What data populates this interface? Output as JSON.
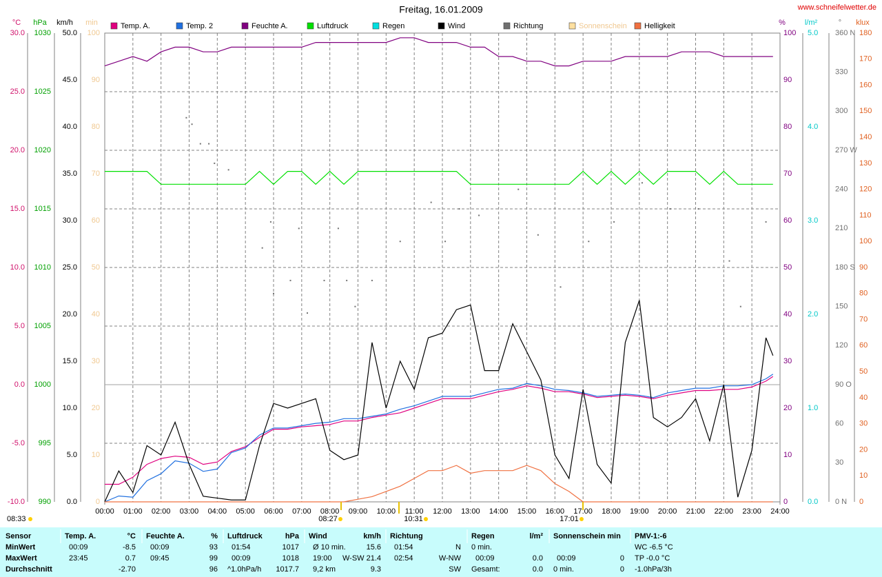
{
  "title": "Freitag, 16.01.2009",
  "site": "www.schneifelwetter.de",
  "chart_data": {
    "type": "line",
    "xlim": [
      0,
      24
    ],
    "xticks": [
      {
        "value": 0,
        "label": "00:00"
      },
      {
        "value": 1,
        "label": "01:00"
      },
      {
        "value": 2,
        "label": "02:00"
      },
      {
        "value": 3,
        "label": "03:00"
      },
      {
        "value": 4,
        "label": "04:00"
      },
      {
        "value": 5,
        "label": "05:00"
      },
      {
        "value": 6,
        "label": "06:00"
      },
      {
        "value": 7,
        "label": "07:00"
      },
      {
        "value": 8,
        "label": "08:00"
      },
      {
        "value": 9,
        "label": "09:00"
      },
      {
        "value": 10,
        "label": "10:00"
      },
      {
        "value": 11,
        "label": "11:00"
      },
      {
        "value": 12,
        "label": "12:00"
      },
      {
        "value": 13,
        "label": "13:00"
      },
      {
        "value": 14,
        "label": "14:00"
      },
      {
        "value": 15,
        "label": "15:00"
      },
      {
        "value": 16,
        "label": "16:00"
      },
      {
        "value": 17,
        "label": "17:00"
      },
      {
        "value": 18,
        "label": "18:00"
      },
      {
        "value": 19,
        "label": "19:00"
      },
      {
        "value": 20,
        "label": "20:00"
      },
      {
        "value": 21,
        "label": "21:00"
      },
      {
        "value": 22,
        "label": "22:00"
      },
      {
        "value": 23,
        "label": "23:00"
      },
      {
        "value": 24,
        "label": "24:00"
      }
    ],
    "grid": true,
    "x": [
      0,
      0.5,
      1,
      1.5,
      2,
      2.5,
      3,
      3.5,
      4,
      4.5,
      5,
      5.5,
      6,
      6.5,
      7,
      7.5,
      8,
      8.5,
      9,
      9.5,
      10,
      10.5,
      11,
      11.5,
      12,
      12.5,
      13,
      13.5,
      14,
      14.5,
      15,
      15.5,
      16,
      16.5,
      17,
      17.5,
      18,
      18.5,
      19,
      19.5,
      20,
      20.5,
      21,
      21.5,
      22,
      22.5,
      23,
      23.5,
      23.75
    ],
    "axes": {
      "temp": {
        "label": "°C",
        "color": "#d0106a",
        "lim": [
          -10,
          30
        ],
        "ticks": [
          {
            "value": 30,
            "label": "30.0"
          },
          {
            "value": 25,
            "label": "25.0"
          },
          {
            "value": 20,
            "label": "20.0"
          },
          {
            "value": 15,
            "label": "15.0"
          },
          {
            "value": 10,
            "label": "10.0"
          },
          {
            "value": 5,
            "label": "5.0"
          },
          {
            "value": 0,
            "label": "0.0"
          },
          {
            "value": -5,
            "label": "-5.0"
          },
          {
            "value": -10,
            "label": "-10.0"
          }
        ]
      },
      "pressure": {
        "label": "hPa",
        "color": "#00a000",
        "lim": [
          990,
          1030
        ],
        "ticks": [
          1030,
          1025,
          1020,
          1015,
          1010,
          1005,
          1000,
          995,
          990
        ]
      },
      "wind": {
        "label": "km/h",
        "color": "#000000",
        "lim": [
          0,
          50
        ],
        "ticks": [
          {
            "value": 50,
            "label": "50.0"
          },
          {
            "value": 45,
            "label": "45.0"
          },
          {
            "value": 40,
            "label": "40.0"
          },
          {
            "value": 35,
            "label": "35.0"
          },
          {
            "value": 30,
            "label": "30.0"
          },
          {
            "value": 25,
            "label": "25.0"
          },
          {
            "value": 20,
            "label": "20.0"
          },
          {
            "value": 15,
            "label": "15.0"
          },
          {
            "value": 10,
            "label": "10.0"
          },
          {
            "value": 5,
            "label": "5.0"
          },
          {
            "value": 0,
            "label": "0.0"
          }
        ]
      },
      "min": {
        "label": "min",
        "color": "#f0c890",
        "lim": [
          0,
          100
        ],
        "ticks": [
          100,
          90,
          80,
          70,
          60,
          50,
          40,
          30,
          20,
          10,
          0
        ]
      },
      "humidity": {
        "label": "%",
        "color": "#800080",
        "lim": [
          0,
          100
        ],
        "ticks": [
          100,
          90,
          80,
          70,
          60,
          50,
          40,
          30,
          20,
          10,
          0
        ]
      },
      "rain": {
        "label": "l/m²",
        "color": "#00c8c8",
        "lim": [
          0,
          5
        ],
        "ticks": [
          {
            "value": 5,
            "label": "5.0"
          },
          {
            "value": 4,
            "label": "4.0"
          },
          {
            "value": 3,
            "label": "3.0"
          },
          {
            "value": 2,
            "label": "2.0"
          },
          {
            "value": 1,
            "label": "1.0"
          },
          {
            "value": 0,
            "label": "0.0"
          }
        ]
      },
      "dir": {
        "label": "°",
        "color": "#707070",
        "lim": [
          0,
          360
        ],
        "ticks": [
          {
            "value": 360,
            "label": "360 N"
          },
          330,
          300,
          {
            "value": 270,
            "label": "270 W"
          },
          240,
          210,
          {
            "value": 180,
            "label": "180 S"
          },
          150,
          120,
          {
            "value": 90,
            "label": "90 O"
          },
          60,
          30,
          {
            "value": 0,
            "label": "0 N"
          }
        ]
      },
      "klux": {
        "label": "klux",
        "color": "#e06020",
        "lim": [
          0,
          180
        ],
        "ticks": [
          180,
          170,
          160,
          150,
          140,
          130,
          120,
          110,
          100,
          90,
          80,
          70,
          60,
          50,
          40,
          30,
          20,
          10,
          0
        ]
      }
    },
    "series": [
      {
        "name": "Temp. A.",
        "color": "#e0007f",
        "axis": "temp",
        "values": [
          -8.5,
          -8.5,
          -7.9,
          -6.8,
          -6.3,
          -6.1,
          -6.2,
          -6.8,
          -6.6,
          -5.7,
          -5.3,
          -4.5,
          -3.8,
          -3.8,
          -3.6,
          -3.5,
          -3.4,
          -3.1,
          -3.1,
          -2.8,
          -2.6,
          -2.4,
          -2.0,
          -1.6,
          -1.2,
          -1.2,
          -1.2,
          -0.9,
          -0.6,
          -0.4,
          -0.1,
          -0.3,
          -0.6,
          -0.6,
          -0.8,
          -1.1,
          -1.0,
          -0.9,
          -1.0,
          -1.2,
          -0.9,
          -0.7,
          -0.5,
          -0.5,
          -0.4,
          -0.4,
          -0.2,
          0.3,
          0.7
        ]
      },
      {
        "name": "Temp. 2",
        "color": "#2070e0",
        "axis": "temp",
        "values": [
          -10,
          -9.5,
          -9.6,
          -8.2,
          -7.6,
          -6.5,
          -6.7,
          -7.4,
          -7.2,
          -5.8,
          -5.4,
          -4.3,
          -3.7,
          -3.7,
          -3.5,
          -3.3,
          -3.2,
          -2.9,
          -2.9,
          -2.7,
          -2.5,
          -2.1,
          -1.8,
          -1.4,
          -1.0,
          -1.0,
          -1.0,
          -0.7,
          -0.4,
          -0.3,
          0.1,
          -0.1,
          -0.4,
          -0.5,
          -0.7,
          -1.0,
          -0.9,
          -0.8,
          -0.9,
          -1.1,
          -0.7,
          -0.5,
          -0.3,
          -0.3,
          -0.1,
          -0.1,
          0.0,
          0.5,
          0.9
        ]
      },
      {
        "name": "Feuchte A.",
        "color": "#800080",
        "axis": "humidity",
        "values": [
          93,
          94,
          95,
          94,
          96,
          97,
          97,
          96,
          96,
          97,
          97,
          97,
          97,
          97,
          97,
          98,
          98,
          98,
          98,
          98,
          98,
          99,
          99,
          98,
          98,
          98,
          97,
          97,
          95,
          95,
          94,
          94,
          93,
          93,
          94,
          94,
          94,
          95,
          95,
          95,
          95,
          96,
          96,
          96,
          95,
          95,
          95,
          95,
          95
        ]
      },
      {
        "name": "Luftdruck",
        "color": "#00e000",
        "axis": "pressure",
        "values": [
          1018.2,
          1018.2,
          1018.2,
          1018.2,
          1017.1,
          1017.1,
          1017.1,
          1017.1,
          1017.1,
          1017.1,
          1017.1,
          1018.2,
          1017.1,
          1018.2,
          1018.2,
          1017.1,
          1018.2,
          1017.1,
          1018.2,
          1018.2,
          1018.2,
          1018.2,
          1018.2,
          1018.2,
          1018.2,
          1018.2,
          1017.1,
          1017.1,
          1017.1,
          1017.1,
          1017.1,
          1017.1,
          1017.1,
          1017.1,
          1018.2,
          1017.1,
          1018.2,
          1017.1,
          1018.2,
          1017.1,
          1018.2,
          1018.2,
          1018.2,
          1017.1,
          1018.2,
          1017.1,
          1017.1,
          1017.1,
          1017.1
        ]
      },
      {
        "name": "Regen",
        "color": "#00e0e0",
        "axis": "rain"
      },
      {
        "name": "Wind",
        "color": "#000000",
        "axis": "wind",
        "values": [
          0,
          3.3,
          1.0,
          6.0,
          5.0,
          8.5,
          4.0,
          0.6,
          0.4,
          0.2,
          0.2,
          6.0,
          10.5,
          10.0,
          10.5,
          11.0,
          5.5,
          4.5,
          5.0,
          17.0,
          10.0,
          15.0,
          12.0,
          17.5,
          18.0,
          20.5,
          21.0,
          14.0,
          14.0,
          19.0,
          16.0,
          13.0,
          5.0,
          2.5,
          12.0,
          4.0,
          2.0,
          17.0,
          21.5,
          9.0,
          8.0,
          9.0,
          11.0,
          6.5,
          12.5,
          0.5,
          5.5,
          17.5,
          15.6
        ]
      },
      {
        "name": "Richtung",
        "color": "#707070",
        "axis": "dir",
        "type": "scatter",
        "x": [
          2.9,
          3.1,
          3.4,
          3.7,
          3.9,
          4.4,
          5.6,
          5.9,
          6.0,
          6.6,
          6.9,
          7.2,
          7.8,
          8.3,
          8.6,
          8.9,
          9.5,
          10.5,
          11.6,
          12.1,
          12.6,
          13.3,
          14.7,
          15.4,
          16.2,
          17.2,
          18.1,
          19.1,
          20.1,
          21.1,
          22.2,
          22.6,
          23.5
        ],
        "values": [
          295,
          290,
          275,
          275,
          260,
          255,
          195,
          215,
          160,
          170,
          210,
          145,
          170,
          210,
          170,
          150,
          170,
          200,
          230,
          200,
          225,
          220,
          240,
          205,
          165,
          200,
          215,
          245,
          225,
          225,
          185,
          150,
          215
        ]
      },
      {
        "name": "Sonnenschein",
        "color": "#ffe0a0",
        "axis": "min"
      },
      {
        "name": "Helligkeit",
        "color": "#f07040",
        "axis": "klux",
        "values": [
          0,
          0,
          0,
          0,
          0,
          0,
          0,
          0,
          0,
          0,
          0,
          0,
          0,
          0,
          0,
          0,
          0,
          0,
          1,
          2,
          4,
          6,
          9,
          12,
          12,
          14,
          11,
          12,
          12,
          12,
          14,
          12,
          7,
          4,
          0,
          0,
          0,
          0,
          0,
          0,
          0,
          0,
          0,
          0,
          0,
          0,
          0,
          0,
          0
        ]
      }
    ],
    "annotations": [
      "08:33",
      "08:27",
      "10:31",
      "17:01"
    ]
  },
  "table": {
    "header": [
      "Sensor",
      "Temp. A.",
      "°C",
      "Feuchte A.",
      "%",
      "Luftdruck",
      "hPa",
      "Wind",
      "km/h",
      "Richtung",
      "Regen",
      "l/m²",
      "Sonnenschein min",
      "PMV-1:-6"
    ],
    "rows": [
      [
        "MinWert",
        "00:09",
        "-8.5",
        "00:09",
        "93",
        "01:54",
        "1017",
        "Ø 10 min.",
        "15.6",
        "01:54",
        "N",
        "0 min.",
        "WC -6.5 °C"
      ],
      [
        "MaxWert",
        "23:45",
        "0.7",
        "09:45",
        "99",
        "00:09",
        "1018",
        "19:00",
        "W-SW 21.4",
        "02:54",
        "W-NW",
        "00:09",
        "0.0",
        "00:09",
        "0",
        "TP -0.0 °C"
      ],
      [
        "Durchschnitt",
        "-2.70",
        "96",
        "^1.0hPa/h",
        "1017.7",
        "9,2 km",
        "9.3",
        "SW",
        "Gesamt:",
        "0.0",
        "0 min.",
        "0",
        "-1.0hPa/3h"
      ]
    ]
  }
}
